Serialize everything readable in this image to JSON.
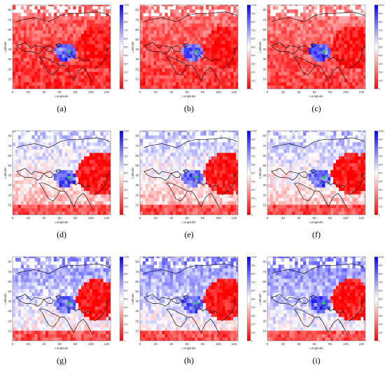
{
  "figure": {
    "captions": [
      "(a)",
      "(b)",
      "(c)",
      "(d)",
      "(e)",
      "(f)",
      "(g)",
      "(h)",
      "(i)"
    ]
  },
  "chart_data": {
    "type": "heatmap",
    "xlabel": "Longitude",
    "ylabel": "Latitude",
    "xlim": [
      0,
      125
    ],
    "ylim": [
      0,
      85
    ],
    "x_ticks": [
      0,
      20,
      40,
      60,
      80,
      100,
      120
    ],
    "y_ticks": [
      10,
      20,
      30,
      40,
      50,
      60,
      70,
      80
    ],
    "colorbar": {
      "min": 0,
      "max": 1000,
      "ticks": [
        0,
        100,
        200,
        300,
        400,
        500,
        600,
        700,
        800,
        900,
        1000
      ],
      "low_color": "#ff0000",
      "mid_color": "#ffffff",
      "high_color": "#0000ff",
      "special_color": "#30c060"
    },
    "panels": [
      {
        "caption": "(a)",
        "mean_level": 150
      },
      {
        "caption": "(b)",
        "mean_level": 170
      },
      {
        "caption": "(c)",
        "mean_level": 190
      },
      {
        "caption": "(d)",
        "mean_level": 470
      },
      {
        "caption": "(e)",
        "mean_level": 480
      },
      {
        "caption": "(f)",
        "mean_level": 500
      },
      {
        "caption": "(g)",
        "mean_level": 570
      },
      {
        "caption": "(h)",
        "mean_level": 580
      },
      {
        "caption": "(i)",
        "mean_level": 600
      }
    ]
  }
}
